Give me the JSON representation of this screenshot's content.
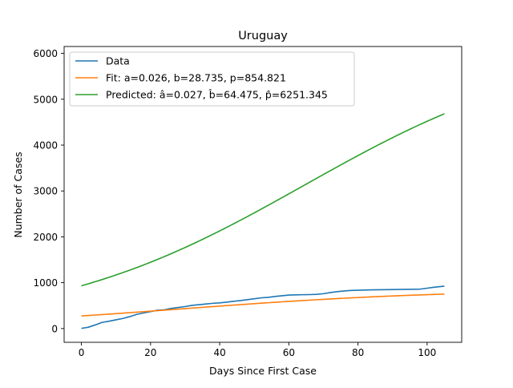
{
  "chart_data": {
    "type": "line",
    "title": "Uruguay",
    "xlabel": "Days Since First Case",
    "ylabel": "Number of Cases",
    "xlim": [
      -5,
      110
    ],
    "ylim": [
      -300,
      6150
    ],
    "xticks": [
      0,
      20,
      40,
      60,
      80,
      100
    ],
    "yticks": [
      0,
      1000,
      2000,
      3000,
      4000,
      5000,
      6000
    ],
    "grid": false,
    "legend_position": "top-left",
    "series": [
      {
        "name": "Data",
        "color": "#1f77b4",
        "x": [
          0,
          2,
          4,
          6,
          8,
          10,
          12,
          14,
          16,
          18,
          20,
          22,
          24,
          26,
          28,
          30,
          32,
          34,
          36,
          38,
          40,
          42,
          44,
          46,
          48,
          50,
          52,
          54,
          56,
          58,
          60,
          62,
          64,
          66,
          68,
          70,
          72,
          74,
          76,
          78,
          80,
          82,
          84,
          86,
          88,
          90,
          92,
          94,
          96,
          98,
          100,
          102,
          105
        ],
        "y": [
          4,
          29,
          79,
          135,
          160,
          190,
          220,
          260,
          310,
          340,
          370,
          400,
          410,
          440,
          460,
          480,
          505,
          520,
          535,
          550,
          560,
          575,
          595,
          610,
          630,
          650,
          670,
          680,
          700,
          715,
          730,
          735,
          738,
          740,
          745,
          760,
          785,
          805,
          820,
          830,
          835,
          840,
          843,
          846,
          848,
          851,
          853,
          855,
          857,
          860,
          880,
          900,
          925
        ]
      },
      {
        "name": "Fit: a=0.026, b=28.735, p=854.821",
        "color": "#ff7f0e",
        "model": "logistic",
        "a": 0.026,
        "b": 28.735,
        "p": 854.821,
        "x_range": [
          0,
          105
        ]
      },
      {
        "name": "Predicted: â=0.027, b̂=64.475, p̂=6251.345",
        "color": "#2ca02c",
        "model": "logistic",
        "a": 0.027,
        "b": 64.475,
        "p": 6251.345,
        "x_range": [
          0,
          105
        ]
      }
    ]
  }
}
